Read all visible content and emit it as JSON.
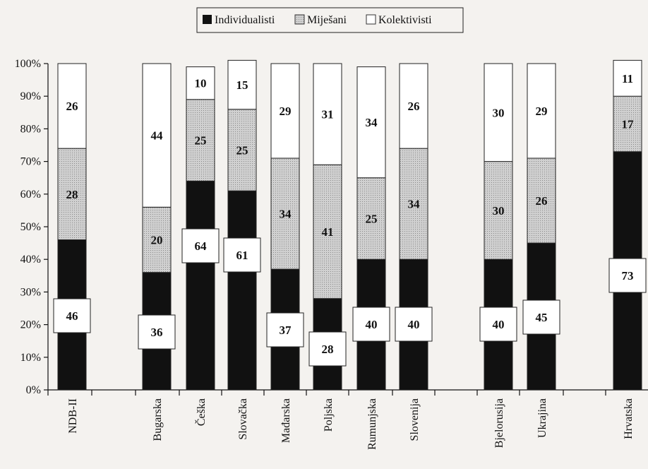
{
  "chart_data": {
    "type": "bar",
    "stacked": true,
    "normalized": true,
    "categories": [
      "NDB-II",
      "Bugarska",
      "Češka",
      "Slovačka",
      "Mađarska",
      "Poljska",
      "Rumunjska",
      "Slovenija",
      "Bjelorusija",
      "Ukrajina",
      "Hrvatska"
    ],
    "series": [
      {
        "name": "Individualisti",
        "values": [
          46,
          36,
          64,
          61,
          37,
          28,
          40,
          40,
          40,
          45,
          73
        ],
        "color": "#111111"
      },
      {
        "name": "Miješani",
        "values": [
          28,
          20,
          25,
          25,
          34,
          41,
          25,
          34,
          30,
          26,
          17
        ],
        "color": "#c8c8c8"
      },
      {
        "name": "Kolektivisti",
        "values": [
          26,
          44,
          10,
          15,
          29,
          31,
          34,
          26,
          30,
          29,
          11
        ],
        "color": "#ffffff"
      }
    ],
    "ylim": [
      0,
      100
    ],
    "yticks": [
      "0%",
      "10%",
      "20%",
      "30%",
      "40%",
      "50%",
      "60%",
      "70%",
      "80%",
      "90%",
      "100%"
    ],
    "legend_position": "top-center",
    "grid": false
  },
  "legend": {
    "items": [
      {
        "label": "Individualisti",
        "icon": "solid-black-square"
      },
      {
        "label": "Miješani",
        "icon": "dotted-gray-square"
      },
      {
        "label": "Kolektivisti",
        "icon": "white-square"
      }
    ]
  }
}
